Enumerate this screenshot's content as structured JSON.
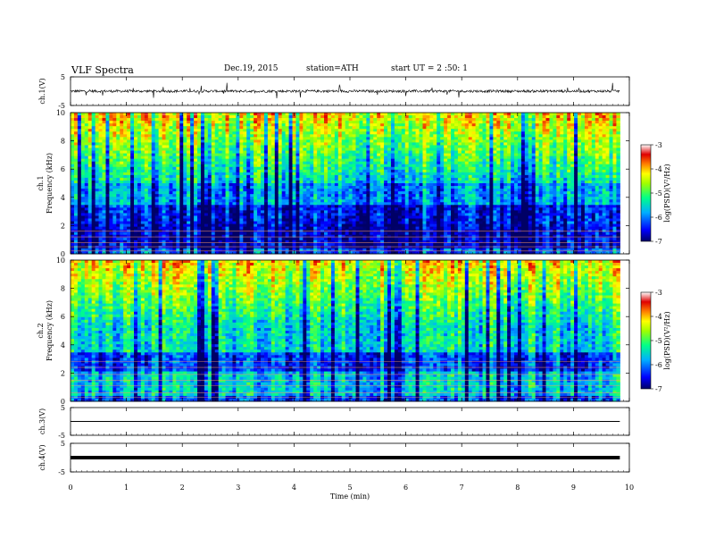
{
  "header": {
    "title": "VLF  Spectra",
    "date": "Dec.19, 2015",
    "station": "station=ATH",
    "start": "start  UT =   2 :50: 1"
  },
  "chart_data": [
    {
      "type": "line",
      "panel": "ch1-waveform",
      "ylabel": "ch.1(V)",
      "ylim": [
        -5,
        5
      ],
      "yticks": [
        "5",
        "-5"
      ],
      "baseline": 0,
      "x_end_min": 9.83
    },
    {
      "type": "heatmap",
      "panel": "ch1-spectrogram",
      "ylabel_line1": "ch.1",
      "ylabel_line2": "Frequency (kHz)",
      "ylim": [
        0,
        10
      ],
      "yticks": [
        "0",
        "2",
        "4",
        "6",
        "8",
        "10"
      ],
      "x_end_min": 9.83,
      "colorbar": {
        "label": "log(PSD)(V²/Hz)",
        "range": [
          -7,
          -3
        ],
        "ticks": [
          "-3",
          "-4",
          "-5",
          "-6",
          "-7"
        ]
      }
    },
    {
      "type": "heatmap",
      "panel": "ch2-spectrogram",
      "ylabel_line1": "ch.2",
      "ylabel_line2": "Frequency (kHz)",
      "ylim": [
        0,
        10
      ],
      "yticks": [
        "0",
        "2",
        "4",
        "6",
        "8",
        "10"
      ],
      "x_end_min": 9.83,
      "colorbar": {
        "label": "log(PSD)(V²/Hz)",
        "range": [
          -7,
          -3
        ],
        "ticks": [
          "-3",
          "-4",
          "-5",
          "-6",
          "-7"
        ]
      }
    },
    {
      "type": "line",
      "panel": "ch3-waveform",
      "ylabel": "ch.3(V)",
      "ylim": [
        -5,
        5
      ],
      "yticks": [
        "5",
        "-5"
      ],
      "baseline": 0,
      "x_end_min": 9.83
    },
    {
      "type": "line",
      "panel": "ch4-waveform",
      "ylabel": "ch.4(V)",
      "ylim": [
        -5,
        5
      ],
      "yticks": [
        "5",
        "-5"
      ],
      "baseline": 0,
      "x_end_min": 9.83
    }
  ],
  "x_axis": {
    "xlabel": "Time  (min)",
    "xlim": [
      0,
      10
    ],
    "ticks": [
      "0",
      "1",
      "2",
      "3",
      "4",
      "5",
      "6",
      "7",
      "8",
      "9",
      "10"
    ]
  }
}
